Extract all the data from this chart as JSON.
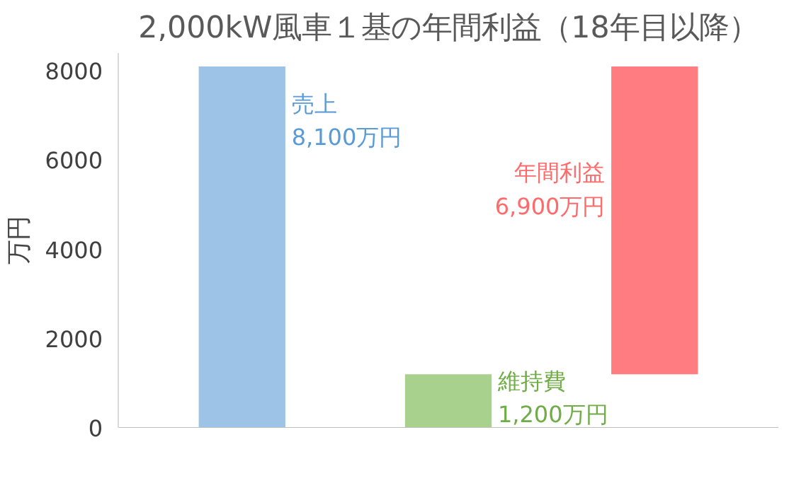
{
  "chart_data": {
    "type": "bar",
    "title": "2,000kW風車１基の年間利益（18年目以降）",
    "ylabel": "万円",
    "categories": [
      null,
      null,
      null
    ],
    "values": [
      8100,
      1200,
      6900
    ],
    "base": [
      0,
      0,
      1200
    ],
    "colors": [
      "#9dc3e6",
      "#a9d18e",
      "#ff7c80"
    ],
    "annotations": [
      "売上\n8,100万円",
      "維持費\n1,200万円",
      "年間利益\n6,900万円"
    ],
    "ylim": [
      0,
      8400
    ],
    "yticks": [
      0,
      2000,
      4000,
      6000,
      8000
    ],
    "grid": false
  }
}
